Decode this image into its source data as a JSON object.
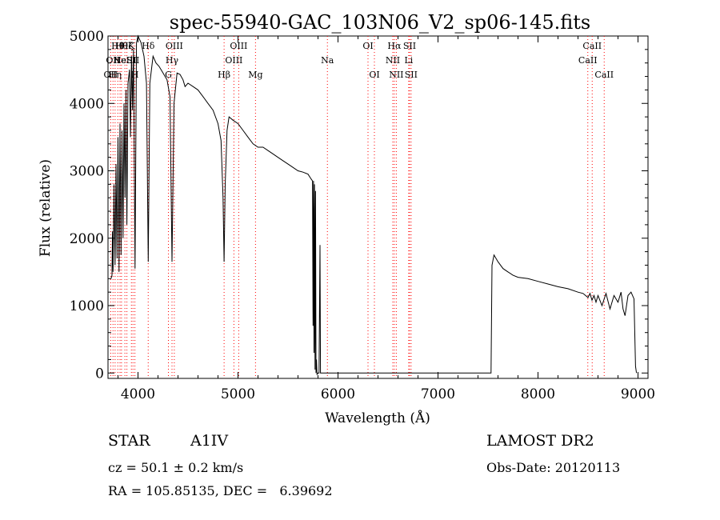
{
  "chart_data": {
    "type": "line",
    "title": "spec-55940-GAC_103N06_V2_sp06-145.fits",
    "xlabel": "Wavelength (Å)",
    "ylabel": "Flux (relative)",
    "xlim": [
      3700,
      9100
    ],
    "ylim": [
      -80,
      5000
    ],
    "xticks": [
      4000,
      5000,
      6000,
      7000,
      8000,
      9000
    ],
    "yticks": [
      0,
      1000,
      2000,
      3000,
      4000,
      5000
    ],
    "grid": false,
    "line_color": "#000000",
    "marker_color": "#ff0000",
    "series": [
      {
        "values": [
          [
            3730,
            1400
          ],
          [
            3740,
            1450
          ],
          [
            3745,
            2100
          ],
          [
            3750,
            1500
          ],
          [
            3760,
            2800
          ],
          [
            3770,
            1600
          ],
          [
            3780,
            3100
          ],
          [
            3790,
            1700
          ],
          [
            3800,
            3500
          ],
          [
            3810,
            1500
          ],
          [
            3820,
            3700
          ],
          [
            3830,
            1750
          ],
          [
            3840,
            3600
          ],
          [
            3850,
            2000
          ],
          [
            3860,
            4000
          ],
          [
            3870,
            2600
          ],
          [
            3880,
            4200
          ],
          [
            3889,
            2200
          ],
          [
            3900,
            4300
          ],
          [
            3915,
            4500
          ],
          [
            3925,
            3500
          ],
          [
            3935,
            4700
          ],
          [
            3945,
            3900
          ],
          [
            3955,
            4800
          ],
          [
            3970,
            1550
          ],
          [
            3985,
            4900
          ],
          [
            4000,
            5000
          ],
          [
            4030,
            4900
          ],
          [
            4060,
            4700
          ],
          [
            4085,
            4300
          ],
          [
            4102,
            1650
          ],
          [
            4118,
            4300
          ],
          [
            4150,
            4700
          ],
          [
            4180,
            4600
          ],
          [
            4210,
            4550
          ],
          [
            4250,
            4450
          ],
          [
            4290,
            4350
          ],
          [
            4320,
            4100
          ],
          [
            4340,
            1650
          ],
          [
            4360,
            4000
          ],
          [
            4390,
            4450
          ],
          [
            4420,
            4430
          ],
          [
            4450,
            4350
          ],
          [
            4470,
            4250
          ],
          [
            4500,
            4300
          ],
          [
            4550,
            4250
          ],
          [
            4600,
            4200
          ],
          [
            4650,
            4100
          ],
          [
            4700,
            4000
          ],
          [
            4750,
            3900
          ],
          [
            4800,
            3700
          ],
          [
            4830,
            3450
          ],
          [
            4850,
            2600
          ],
          [
            4861,
            1650
          ],
          [
            4872,
            2800
          ],
          [
            4890,
            3600
          ],
          [
            4910,
            3800
          ],
          [
            4950,
            3750
          ],
          [
            5000,
            3700
          ],
          [
            5050,
            3600
          ],
          [
            5100,
            3500
          ],
          [
            5150,
            3400
          ],
          [
            5200,
            3350
          ],
          [
            5250,
            3350
          ],
          [
            5300,
            3300
          ],
          [
            5350,
            3250
          ],
          [
            5400,
            3200
          ],
          [
            5450,
            3150
          ],
          [
            5500,
            3100
          ],
          [
            5550,
            3050
          ],
          [
            5600,
            3000
          ],
          [
            5650,
            2980
          ],
          [
            5700,
            2950
          ],
          [
            5730,
            2880
          ],
          [
            5745,
            2850
          ],
          [
            5750,
            700
          ],
          [
            5755,
            2850
          ],
          [
            5760,
            300
          ],
          [
            5765,
            2800
          ],
          [
            5770,
            50
          ],
          [
            5775,
            2700
          ],
          [
            5780,
            0
          ],
          [
            5785,
            200
          ],
          [
            5790,
            -20
          ],
          [
            5800,
            0
          ],
          [
            5810,
            0
          ],
          [
            5820,
            1900
          ],
          [
            5825,
            0
          ],
          [
            6000,
            0
          ],
          [
            6500,
            0
          ],
          [
            7000,
            0
          ],
          [
            7500,
            0
          ],
          [
            7530,
            0
          ],
          [
            7540,
            1600
          ],
          [
            7560,
            1750
          ],
          [
            7600,
            1650
          ],
          [
            7650,
            1550
          ],
          [
            7700,
            1500
          ],
          [
            7750,
            1450
          ],
          [
            7800,
            1420
          ],
          [
            7900,
            1400
          ],
          [
            8000,
            1360
          ],
          [
            8100,
            1320
          ],
          [
            8200,
            1280
          ],
          [
            8300,
            1250
          ],
          [
            8400,
            1200
          ],
          [
            8450,
            1180
          ],
          [
            8500,
            1120
          ],
          [
            8520,
            1180
          ],
          [
            8540,
            1080
          ],
          [
            8560,
            1150
          ],
          [
            8580,
            1050
          ],
          [
            8600,
            1150
          ],
          [
            8640,
            1000
          ],
          [
            8680,
            1180
          ],
          [
            8720,
            950
          ],
          [
            8760,
            1150
          ],
          [
            8800,
            1050
          ],
          [
            8830,
            1200
          ],
          [
            8850,
            950
          ],
          [
            8870,
            850
          ],
          [
            8900,
            1150
          ],
          [
            8930,
            1200
          ],
          [
            8960,
            1100
          ],
          [
            8975,
            100
          ],
          [
            8985,
            0
          ]
        ]
      }
    ],
    "lines": [
      {
        "wavelength": 3727,
        "row": 2,
        "label": "OII"
      },
      {
        "wavelength": 3750,
        "row": 1,
        "label": "OII"
      },
      {
        "wavelength": 3771,
        "row": 2,
        "label": "Hη"
      },
      {
        "wavelength": 3798,
        "row": 0,
        "label": "Hθ"
      },
      {
        "wavelength": 3820,
        "row": 1,
        "label": "He"
      },
      {
        "wavelength": 3835,
        "row": 0,
        "label": "Hθ"
      },
      {
        "wavelength": 3869,
        "row": 1,
        "label": "NeIII"
      },
      {
        "wavelength": 3889,
        "row": 0,
        "label": "Hζ"
      },
      {
        "wavelength": 3934,
        "row": 0,
        "label": "K"
      },
      {
        "wavelength": 3950,
        "row": 1,
        "label": "SII"
      },
      {
        "wavelength": 3969,
        "row": 2,
        "label": "H"
      },
      {
        "wavelength": 4102,
        "row": 0,
        "label": "Hδ"
      },
      {
        "wavelength": 4304,
        "row": 2,
        "label": "G"
      },
      {
        "wavelength": 4340,
        "row": 1,
        "label": "Hγ"
      },
      {
        "wavelength": 4363,
        "row": 0,
        "label": "OIII"
      },
      {
        "wavelength": 4861,
        "row": 2,
        "label": "Hβ"
      },
      {
        "wavelength": 4959,
        "row": 1,
        "label": "OIII"
      },
      {
        "wavelength": 5007,
        "row": 0,
        "label": "OIII"
      },
      {
        "wavelength": 5175,
        "row": 2,
        "label": "Mg"
      },
      {
        "wavelength": 5894,
        "row": 1,
        "label": "Na"
      },
      {
        "wavelength": 6300,
        "row": 0,
        "label": "OI"
      },
      {
        "wavelength": 6364,
        "row": 2,
        "label": "OI"
      },
      {
        "wavelength": 6548,
        "row": 1,
        "label": "NII"
      },
      {
        "wavelength": 6563,
        "row": 0,
        "label": "Hα"
      },
      {
        "wavelength": 6583,
        "row": 2,
        "label": "NII"
      },
      {
        "wavelength": 6707,
        "row": 1,
        "label": "Li"
      },
      {
        "wavelength": 6716,
        "row": 0,
        "label": "SII"
      },
      {
        "wavelength": 6731,
        "row": 2,
        "label": "SII"
      },
      {
        "wavelength": 8498,
        "row": 1,
        "label": "CaII"
      },
      {
        "wavelength": 8542,
        "row": 0,
        "label": "CaII"
      },
      {
        "wavelength": 8662,
        "row": 2,
        "label": "CaII"
      }
    ]
  },
  "info": {
    "object_class": "STAR",
    "subclass": "A1IV",
    "survey": "LAMOST DR2",
    "cz": "cz = 50.1 ± 0.2 km/s",
    "obs_date": "Obs-Date: 20120113",
    "coords": "RA = 105.85135, DEC =   6.39692"
  }
}
